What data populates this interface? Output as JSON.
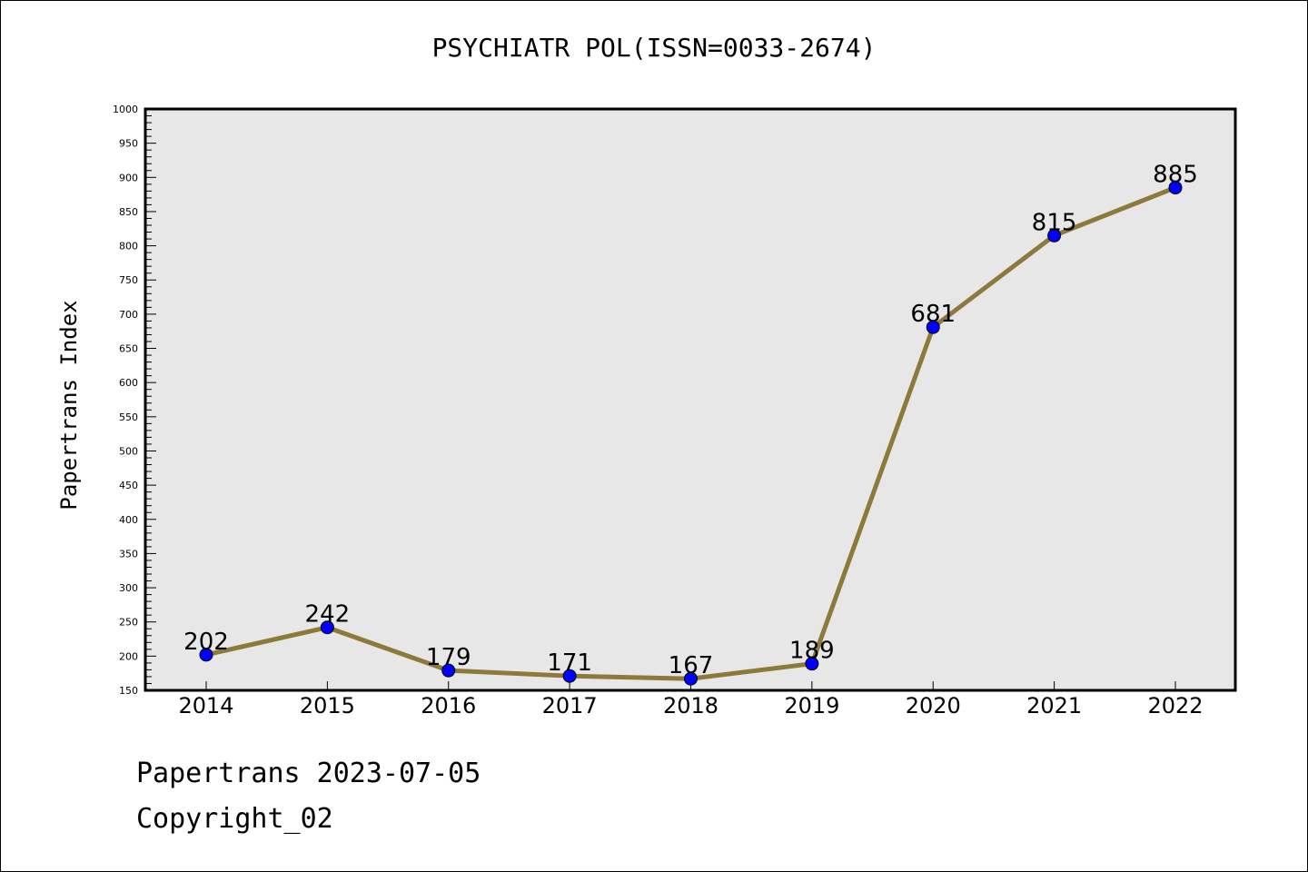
{
  "chart_data": {
    "type": "line",
    "title": "PSYCHIATR POL(ISSN=0033-2674)",
    "xlabel": "",
    "ylabel": "Papertrans Index",
    "categories": [
      "2014",
      "2015",
      "2016",
      "2017",
      "2018",
      "2019",
      "2020",
      "2021",
      "2022"
    ],
    "series": [
      {
        "values": [
          202,
          242,
          179,
          171,
          167,
          189,
          681,
          815,
          885
        ]
      }
    ],
    "data_labels": [
      "202",
      "242",
      "179",
      "171",
      "167",
      "189",
      "681",
      "815",
      "885"
    ],
    "ylim": [
      150,
      1000
    ],
    "yticks": [
      "150",
      "200",
      "250",
      "300",
      "350",
      "400",
      "450",
      "500",
      "550",
      "600",
      "650",
      "700",
      "750",
      "800",
      "850",
      "900",
      "950",
      "1000"
    ],
    "grid": false,
    "plot_background": "#e7e7e7",
    "line_color": "#8c7a3a",
    "marker_color": "#0000ff"
  },
  "footer": {
    "date_line": "Papertrans 2023-07-05",
    "copyright": "Copyright_02"
  }
}
